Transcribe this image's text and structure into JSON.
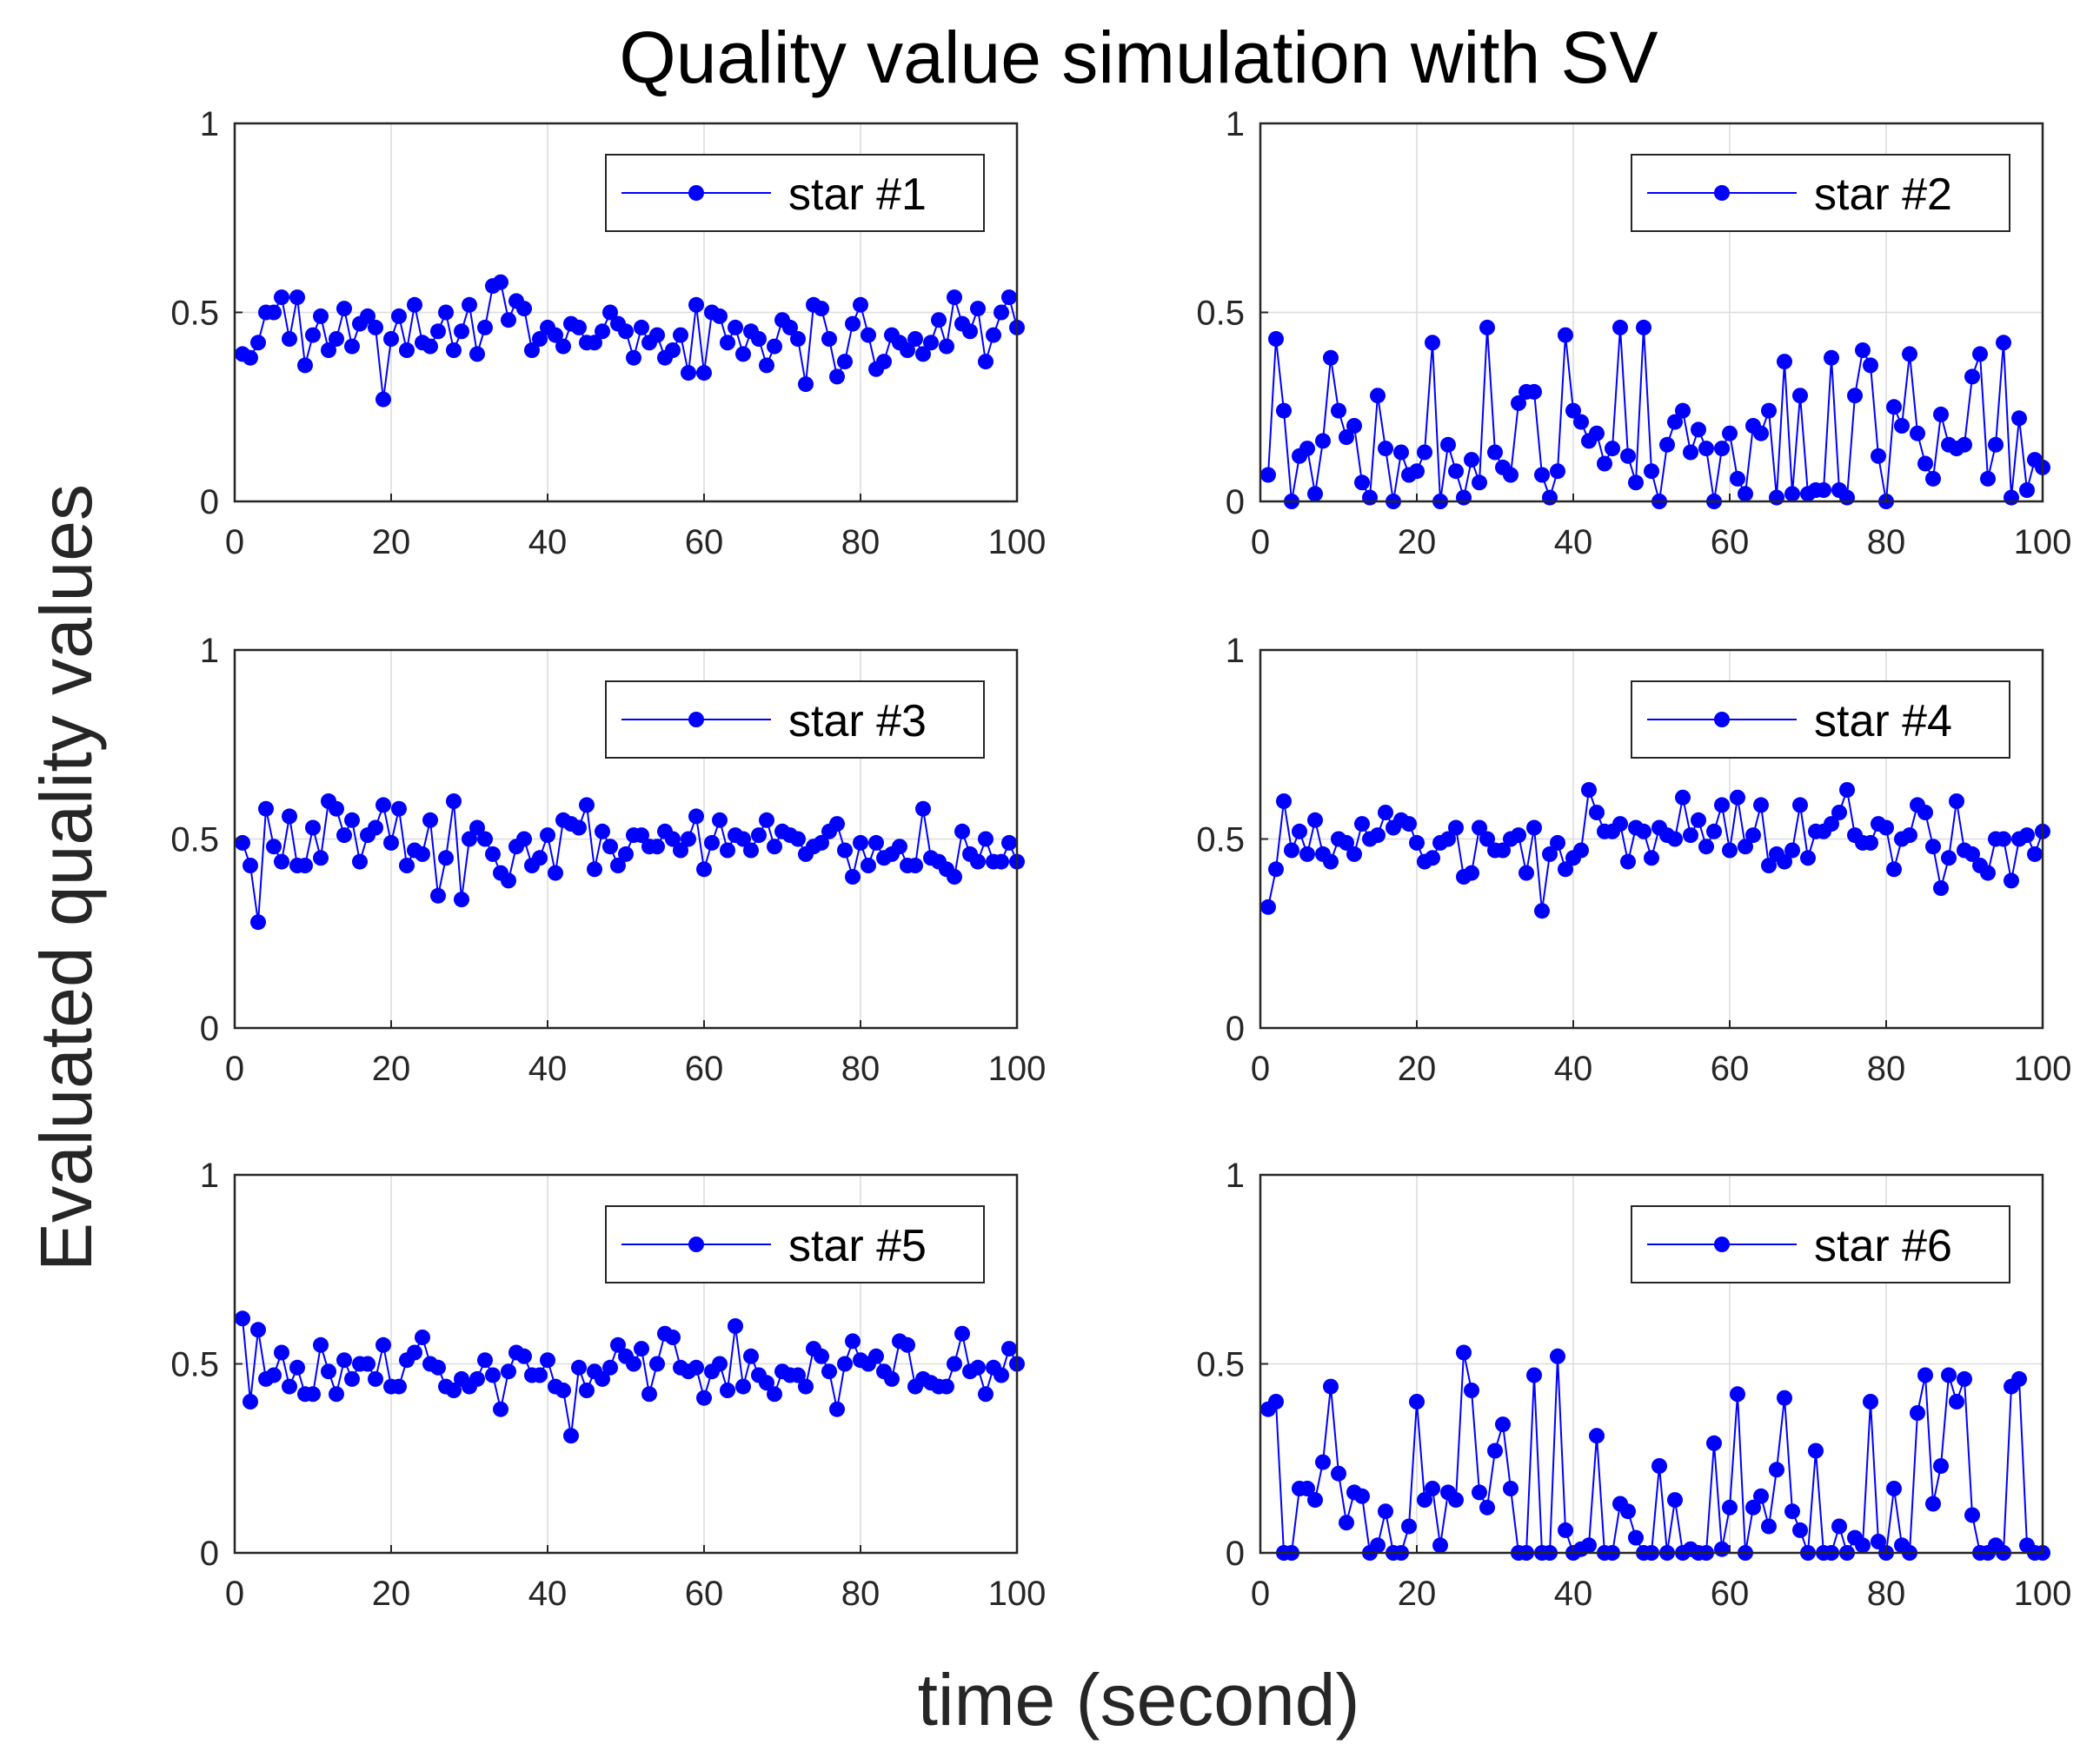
{
  "title": "Quality value simulation with SV",
  "xlabel": "time (second)",
  "ylabel": "Evaluated quality values",
  "colors": {
    "series": "#0000ff",
    "axes": "#262626",
    "grid": "#dcdcdc"
  },
  "chart_data": [
    {
      "type": "line",
      "marker": "circle",
      "legend": "star #1",
      "legend_position": "top-right",
      "grid": true,
      "xlim": [
        0,
        100
      ],
      "ylim": [
        0,
        1
      ],
      "xticks": [
        "0",
        "20",
        "40",
        "60",
        "80",
        "100"
      ],
      "yticks": [
        "0",
        "0.5",
        "1"
      ],
      "x": [
        1,
        2,
        3,
        4,
        5,
        6,
        7,
        8,
        9,
        10,
        11,
        12,
        13,
        14,
        15,
        16,
        17,
        18,
        19,
        20,
        21,
        22,
        23,
        24,
        25,
        26,
        27,
        28,
        29,
        30,
        31,
        32,
        33,
        34,
        35,
        36,
        37,
        38,
        39,
        40,
        41,
        42,
        43,
        44,
        45,
        46,
        47,
        48,
        49,
        50,
        51,
        52,
        53,
        54,
        55,
        56,
        57,
        58,
        59,
        60,
        61,
        62,
        63,
        64,
        65,
        66,
        67,
        68,
        69,
        70,
        71,
        72,
        73,
        74,
        75,
        76,
        77,
        78,
        79,
        80,
        81,
        82,
        83,
        84,
        85,
        86,
        87,
        88,
        89,
        90,
        91,
        92,
        93,
        94,
        95,
        96,
        97,
        98,
        99,
        100
      ],
      "values": [
        0.39,
        0.38,
        0.42,
        0.5,
        0.5,
        0.54,
        0.43,
        0.54,
        0.36,
        0.44,
        0.49,
        0.4,
        0.43,
        0.51,
        0.41,
        0.47,
        0.49,
        0.46,
        0.27,
        0.43,
        0.49,
        0.4,
        0.52,
        0.42,
        0.41,
        0.45,
        0.5,
        0.4,
        0.45,
        0.52,
        0.39,
        0.46,
        0.57,
        0.58,
        0.48,
        0.53,
        0.51,
        0.4,
        0.43,
        0.46,
        0.44,
        0.41,
        0.47,
        0.46,
        0.42,
        0.42,
        0.45,
        0.5,
        0.47,
        0.45,
        0.38,
        0.46,
        0.42,
        0.44,
        0.38,
        0.4,
        0.44,
        0.34,
        0.52,
        0.34,
        0.5,
        0.49,
        0.42,
        0.46,
        0.39,
        0.45,
        0.43,
        0.36,
        0.41,
        0.48,
        0.46,
        0.43,
        0.31,
        0.52,
        0.51,
        0.43,
        0.33,
        0.37,
        0.47,
        0.52,
        0.44,
        0.35,
        0.37,
        0.44,
        0.42,
        0.4,
        0.43,
        0.39,
        0.42,
        0.48,
        0.41,
        0.54,
        0.47,
        0.45,
        0.51,
        0.37,
        0.44,
        0.5,
        0.54,
        0.46
      ]
    },
    {
      "type": "line",
      "marker": "circle",
      "legend": "star #2",
      "legend_position": "top-right",
      "grid": true,
      "xlim": [
        0,
        100
      ],
      "ylim": [
        0,
        1
      ],
      "xticks": [
        "0",
        "20",
        "40",
        "60",
        "80",
        "100"
      ],
      "yticks": [
        "0",
        "0.5",
        "1"
      ],
      "x": [
        1,
        2,
        3,
        4,
        5,
        6,
        7,
        8,
        9,
        10,
        11,
        12,
        13,
        14,
        15,
        16,
        17,
        18,
        19,
        20,
        21,
        22,
        23,
        24,
        25,
        26,
        27,
        28,
        29,
        30,
        31,
        32,
        33,
        34,
        35,
        36,
        37,
        38,
        39,
        40,
        41,
        42,
        43,
        44,
        45,
        46,
        47,
        48,
        49,
        50,
        51,
        52,
        53,
        54,
        55,
        56,
        57,
        58,
        59,
        60,
        61,
        62,
        63,
        64,
        65,
        66,
        67,
        68,
        69,
        70,
        71,
        72,
        73,
        74,
        75,
        76,
        77,
        78,
        79,
        80,
        81,
        82,
        83,
        84,
        85,
        86,
        87,
        88,
        89,
        90,
        91,
        92,
        93,
        94,
        95,
        96,
        97,
        98,
        99,
        100
      ],
      "values": [
        0.07,
        0.43,
        0.24,
        0.0,
        0.12,
        0.14,
        0.02,
        0.16,
        0.38,
        0.24,
        0.17,
        0.2,
        0.05,
        0.01,
        0.28,
        0.14,
        0.0,
        0.13,
        0.07,
        0.08,
        0.13,
        0.42,
        0.0,
        0.15,
        0.08,
        0.01,
        0.11,
        0.05,
        0.46,
        0.13,
        0.09,
        0.07,
        0.26,
        0.29,
        0.29,
        0.07,
        0.01,
        0.08,
        0.44,
        0.24,
        0.21,
        0.16,
        0.18,
        0.1,
        0.14,
        0.46,
        0.12,
        0.05,
        0.46,
        0.08,
        0.0,
        0.15,
        0.21,
        0.24,
        0.13,
        0.19,
        0.14,
        0.0,
        0.14,
        0.18,
        0.06,
        0.02,
        0.2,
        0.18,
        0.24,
        0.01,
        0.37,
        0.02,
        0.28,
        0.02,
        0.03,
        0.03,
        0.38,
        0.03,
        0.01,
        0.28,
        0.4,
        0.36,
        0.12,
        0.0,
        0.25,
        0.2,
        0.39,
        0.18,
        0.1,
        0.06,
        0.23,
        0.15,
        0.14,
        0.15,
        0.33,
        0.39,
        0.06,
        0.15,
        0.42,
        0.01,
        0.22,
        0.03,
        0.11,
        0.09
      ]
    },
    {
      "type": "line",
      "marker": "circle",
      "legend": "star #3",
      "legend_position": "top-right",
      "grid": true,
      "xlim": [
        0,
        100
      ],
      "ylim": [
        0,
        1
      ],
      "xticks": [
        "0",
        "20",
        "40",
        "60",
        "80",
        "100"
      ],
      "yticks": [
        "0",
        "0.5",
        "1"
      ],
      "x": [
        1,
        2,
        3,
        4,
        5,
        6,
        7,
        8,
        9,
        10,
        11,
        12,
        13,
        14,
        15,
        16,
        17,
        18,
        19,
        20,
        21,
        22,
        23,
        24,
        25,
        26,
        27,
        28,
        29,
        30,
        31,
        32,
        33,
        34,
        35,
        36,
        37,
        38,
        39,
        40,
        41,
        42,
        43,
        44,
        45,
        46,
        47,
        48,
        49,
        50,
        51,
        52,
        53,
        54,
        55,
        56,
        57,
        58,
        59,
        60,
        61,
        62,
        63,
        64,
        65,
        66,
        67,
        68,
        69,
        70,
        71,
        72,
        73,
        74,
        75,
        76,
        77,
        78,
        79,
        80,
        81,
        82,
        83,
        84,
        85,
        86,
        87,
        88,
        89,
        90,
        91,
        92,
        93,
        94,
        95,
        96,
        97,
        98,
        99,
        100
      ],
      "values": [
        0.49,
        0.43,
        0.28,
        0.58,
        0.48,
        0.44,
        0.56,
        0.43,
        0.43,
        0.53,
        0.45,
        0.6,
        0.58,
        0.51,
        0.55,
        0.44,
        0.51,
        0.53,
        0.59,
        0.49,
        0.58,
        0.43,
        0.47,
        0.46,
        0.55,
        0.35,
        0.45,
        0.6,
        0.34,
        0.5,
        0.53,
        0.5,
        0.46,
        0.41,
        0.39,
        0.48,
        0.5,
        0.43,
        0.45,
        0.51,
        0.41,
        0.55,
        0.54,
        0.53,
        0.59,
        0.42,
        0.52,
        0.48,
        0.43,
        0.46,
        0.51,
        0.51,
        0.48,
        0.48,
        0.52,
        0.5,
        0.47,
        0.5,
        0.56,
        0.42,
        0.49,
        0.55,
        0.47,
        0.51,
        0.5,
        0.47,
        0.51,
        0.55,
        0.48,
        0.52,
        0.51,
        0.5,
        0.46,
        0.48,
        0.49,
        0.52,
        0.54,
        0.47,
        0.4,
        0.49,
        0.43,
        0.49,
        0.45,
        0.46,
        0.48,
        0.43,
        0.43,
        0.58,
        0.45,
        0.44,
        0.42,
        0.4,
        0.52,
        0.46,
        0.44,
        0.5,
        0.44,
        0.44,
        0.49,
        0.44
      ]
    },
    {
      "type": "line",
      "marker": "circle",
      "legend": "star #4",
      "legend_position": "top-right",
      "grid": true,
      "xlim": [
        0,
        100
      ],
      "ylim": [
        0,
        1
      ],
      "xticks": [
        "0",
        "20",
        "40",
        "60",
        "80",
        "100"
      ],
      "yticks": [
        "0",
        "0.5",
        "1"
      ],
      "x": [
        1,
        2,
        3,
        4,
        5,
        6,
        7,
        8,
        9,
        10,
        11,
        12,
        13,
        14,
        15,
        16,
        17,
        18,
        19,
        20,
        21,
        22,
        23,
        24,
        25,
        26,
        27,
        28,
        29,
        30,
        31,
        32,
        33,
        34,
        35,
        36,
        37,
        38,
        39,
        40,
        41,
        42,
        43,
        44,
        45,
        46,
        47,
        48,
        49,
        50,
        51,
        52,
        53,
        54,
        55,
        56,
        57,
        58,
        59,
        60,
        61,
        62,
        63,
        64,
        65,
        66,
        67,
        68,
        69,
        70,
        71,
        72,
        73,
        74,
        75,
        76,
        77,
        78,
        79,
        80,
        81,
        82,
        83,
        84,
        85,
        86,
        87,
        88,
        89,
        90,
        91,
        92,
        93,
        94,
        95,
        96,
        97,
        98,
        99,
        100
      ],
      "values": [
        0.32,
        0.42,
        0.6,
        0.47,
        0.52,
        0.46,
        0.55,
        0.46,
        0.44,
        0.5,
        0.49,
        0.46,
        0.54,
        0.5,
        0.51,
        0.57,
        0.53,
        0.55,
        0.54,
        0.49,
        0.44,
        0.45,
        0.49,
        0.5,
        0.53,
        0.4,
        0.41,
        0.53,
        0.5,
        0.47,
        0.47,
        0.5,
        0.51,
        0.41,
        0.53,
        0.31,
        0.46,
        0.49,
        0.42,
        0.45,
        0.47,
        0.63,
        0.57,
        0.52,
        0.52,
        0.54,
        0.44,
        0.53,
        0.52,
        0.45,
        0.53,
        0.51,
        0.5,
        0.61,
        0.51,
        0.55,
        0.48,
        0.52,
        0.59,
        0.47,
        0.61,
        0.48,
        0.51,
        0.59,
        0.43,
        0.46,
        0.44,
        0.47,
        0.59,
        0.45,
        0.52,
        0.52,
        0.54,
        0.57,
        0.63,
        0.51,
        0.49,
        0.49,
        0.54,
        0.53,
        0.42,
        0.5,
        0.51,
        0.59,
        0.57,
        0.48,
        0.37,
        0.45,
        0.6,
        0.47,
        0.46,
        0.43,
        0.41,
        0.5,
        0.5,
        0.39,
        0.5,
        0.51,
        0.46,
        0.52
      ]
    },
    {
      "type": "line",
      "marker": "circle",
      "legend": "star #5",
      "legend_position": "top-right",
      "grid": true,
      "xlim": [
        0,
        100
      ],
      "ylim": [
        0,
        1
      ],
      "xticks": [
        "0",
        "20",
        "40",
        "60",
        "80",
        "100"
      ],
      "yticks": [
        "0",
        "0.5",
        "1"
      ],
      "x": [
        1,
        2,
        3,
        4,
        5,
        6,
        7,
        8,
        9,
        10,
        11,
        12,
        13,
        14,
        15,
        16,
        17,
        18,
        19,
        20,
        21,
        22,
        23,
        24,
        25,
        26,
        27,
        28,
        29,
        30,
        31,
        32,
        33,
        34,
        35,
        36,
        37,
        38,
        39,
        40,
        41,
        42,
        43,
        44,
        45,
        46,
        47,
        48,
        49,
        50,
        51,
        52,
        53,
        54,
        55,
        56,
        57,
        58,
        59,
        60,
        61,
        62,
        63,
        64,
        65,
        66,
        67,
        68,
        69,
        70,
        71,
        72,
        73,
        74,
        75,
        76,
        77,
        78,
        79,
        80,
        81,
        82,
        83,
        84,
        85,
        86,
        87,
        88,
        89,
        90,
        91,
        92,
        93,
        94,
        95,
        96,
        97,
        98,
        99,
        100
      ],
      "values": [
        0.62,
        0.4,
        0.59,
        0.46,
        0.47,
        0.53,
        0.44,
        0.49,
        0.42,
        0.42,
        0.55,
        0.48,
        0.42,
        0.51,
        0.46,
        0.5,
        0.5,
        0.46,
        0.55,
        0.44,
        0.44,
        0.51,
        0.53,
        0.57,
        0.5,
        0.49,
        0.44,
        0.43,
        0.46,
        0.44,
        0.46,
        0.51,
        0.47,
        0.38,
        0.48,
        0.53,
        0.52,
        0.47,
        0.47,
        0.51,
        0.44,
        0.43,
        0.31,
        0.49,
        0.43,
        0.48,
        0.46,
        0.49,
        0.55,
        0.52,
        0.5,
        0.54,
        0.42,
        0.5,
        0.58,
        0.57,
        0.49,
        0.48,
        0.49,
        0.41,
        0.48,
        0.5,
        0.43,
        0.6,
        0.44,
        0.52,
        0.47,
        0.45,
        0.42,
        0.48,
        0.47,
        0.47,
        0.44,
        0.54,
        0.52,
        0.48,
        0.38,
        0.5,
        0.56,
        0.51,
        0.5,
        0.52,
        0.48,
        0.46,
        0.56,
        0.55,
        0.44,
        0.46,
        0.45,
        0.44,
        0.44,
        0.5,
        0.58,
        0.48,
        0.49,
        0.42,
        0.49,
        0.47,
        0.54,
        0.5
      ]
    },
    {
      "type": "line",
      "marker": "circle",
      "legend": "star #6",
      "legend_position": "top-right",
      "grid": true,
      "xlim": [
        0,
        100
      ],
      "ylim": [
        0,
        1
      ],
      "xticks": [
        "0",
        "20",
        "40",
        "60",
        "80",
        "100"
      ],
      "yticks": [
        "0",
        "0.5",
        "1"
      ],
      "x": [
        1,
        2,
        3,
        4,
        5,
        6,
        7,
        8,
        9,
        10,
        11,
        12,
        13,
        14,
        15,
        16,
        17,
        18,
        19,
        20,
        21,
        22,
        23,
        24,
        25,
        26,
        27,
        28,
        29,
        30,
        31,
        32,
        33,
        34,
        35,
        36,
        37,
        38,
        39,
        40,
        41,
        42,
        43,
        44,
        45,
        46,
        47,
        48,
        49,
        50,
        51,
        52,
        53,
        54,
        55,
        56,
        57,
        58,
        59,
        60,
        61,
        62,
        63,
        64,
        65,
        66,
        67,
        68,
        69,
        70,
        71,
        72,
        73,
        74,
        75,
        76,
        77,
        78,
        79,
        80,
        81,
        82,
        83,
        84,
        85,
        86,
        87,
        88,
        89,
        90,
        91,
        92,
        93,
        94,
        95,
        96,
        97,
        98,
        99,
        100
      ],
      "values": [
        0.38,
        0.4,
        0.0,
        0.0,
        0.17,
        0.17,
        0.14,
        0.24,
        0.44,
        0.21,
        0.08,
        0.16,
        0.15,
        0.0,
        0.02,
        0.11,
        0.0,
        0.0,
        0.07,
        0.4,
        0.14,
        0.17,
        0.02,
        0.16,
        0.14,
        0.53,
        0.43,
        0.16,
        0.12,
        0.27,
        0.34,
        0.17,
        0.0,
        0.0,
        0.47,
        0.0,
        0.0,
        0.52,
        0.06,
        0.0,
        0.01,
        0.02,
        0.31,
        0.0,
        0.0,
        0.13,
        0.11,
        0.04,
        0.0,
        0.0,
        0.23,
        0.0,
        0.14,
        0.0,
        0.01,
        0.0,
        0.0,
        0.29,
        0.01,
        0.12,
        0.42,
        0.0,
        0.12,
        0.15,
        0.07,
        0.22,
        0.41,
        0.11,
        0.06,
        0.0,
        0.27,
        0.0,
        0.0,
        0.07,
        0.0,
        0.04,
        0.02,
        0.4,
        0.03,
        0.0,
        0.17,
        0.02,
        0.0,
        0.37,
        0.47,
        0.13,
        0.23,
        0.47,
        0.4,
        0.46,
        0.1,
        0.0,
        0.0,
        0.02,
        0.0,
        0.44,
        0.46,
        0.02,
        0.0,
        0.0
      ]
    }
  ]
}
